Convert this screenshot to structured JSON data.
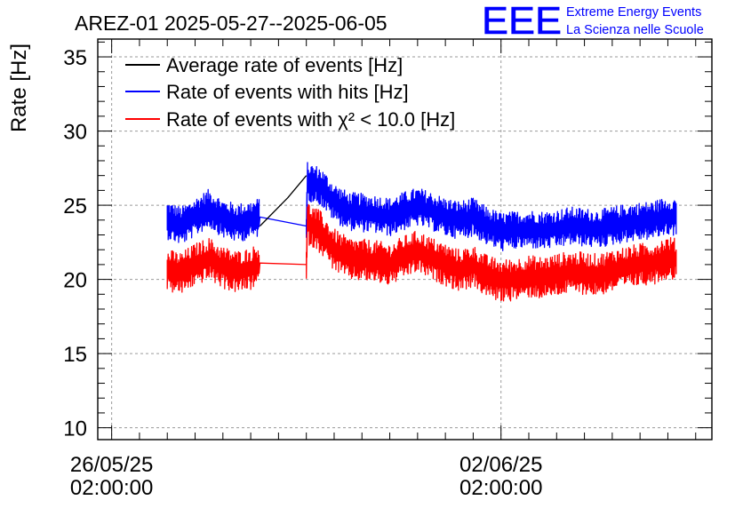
{
  "chart_data": {
    "type": "line",
    "title": "AREZ-01 2025-05-27--2025-06-05",
    "ylabel": "Rate [Hz]",
    "xlabel": "",
    "ylim": [
      9.2,
      36.2
    ],
    "yticks": [
      10,
      15,
      20,
      25,
      30,
      35
    ],
    "xlim": [
      "2025-05-25T20:00:00",
      "2025-06-05T21:00:00"
    ],
    "xticks": [
      {
        "date": "2025-05-26T02:00:00",
        "line1": "26/05/25",
        "line2": "02:00:00"
      },
      {
        "date": "2025-06-02T02:00:00",
        "line1": "02/06/25",
        "line2": "02:00:00"
      }
    ],
    "grid": true,
    "legend_position": "top-left",
    "series": [
      {
        "name": "Average rate of events [Hz]",
        "color": "#000000",
        "points": [
          [
            "2025-05-28T18:00:00",
            23.6
          ],
          [
            "2025-05-29T06:00:00",
            25.5
          ],
          [
            "2025-05-29T14:00:00",
            27.0
          ]
        ]
      },
      {
        "name": "Rate of events with hits [Hz]",
        "color": "#0000ff",
        "noise": 1.0,
        "points": [
          [
            "2025-05-27T02:00:00",
            24.0
          ],
          [
            "2025-05-27T08:00:00",
            23.6
          ],
          [
            "2025-05-27T14:00:00",
            24.2
          ],
          [
            "2025-05-27T20:00:00",
            24.8
          ],
          [
            "2025-05-28T02:00:00",
            24.1
          ],
          [
            "2025-05-28T08:00:00",
            23.8
          ],
          [
            "2025-05-28T14:00:00",
            24.0
          ],
          [
            "2025-05-28T18:00:00",
            24.2
          ],
          [
            "2025-05-29T14:00:00",
            23.6
          ],
          [
            "2025-05-29T14:30:00",
            26.6
          ],
          [
            "2025-05-29T20:00:00",
            26.3
          ],
          [
            "2025-05-30T02:00:00",
            25.2
          ],
          [
            "2025-05-30T08:00:00",
            24.6
          ],
          [
            "2025-05-30T14:00:00",
            24.5
          ],
          [
            "2025-05-30T20:00:00",
            24.4
          ],
          [
            "2025-05-31T02:00:00",
            24.2
          ],
          [
            "2025-05-31T08:00:00",
            24.6
          ],
          [
            "2025-05-31T14:00:00",
            24.9
          ],
          [
            "2025-05-31T20:00:00",
            24.6
          ],
          [
            "2025-06-01T02:00:00",
            24.2
          ],
          [
            "2025-06-01T08:00:00",
            24.0
          ],
          [
            "2025-06-01T14:00:00",
            24.2
          ],
          [
            "2025-06-01T20:00:00",
            23.6
          ],
          [
            "2025-06-02T02:00:00",
            23.2
          ],
          [
            "2025-06-02T08:00:00",
            23.3
          ],
          [
            "2025-06-02T14:00:00",
            23.4
          ],
          [
            "2025-06-02T20:00:00",
            23.3
          ],
          [
            "2025-06-03T02:00:00",
            23.4
          ],
          [
            "2025-06-03T08:00:00",
            23.6
          ],
          [
            "2025-06-03T14:00:00",
            23.5
          ],
          [
            "2025-06-03T20:00:00",
            23.4
          ],
          [
            "2025-06-04T02:00:00",
            23.6
          ],
          [
            "2025-06-04T08:00:00",
            23.8
          ],
          [
            "2025-06-04T14:00:00",
            23.9
          ],
          [
            "2025-06-04T20:00:00",
            24.0
          ],
          [
            "2025-06-05T02:00:00",
            24.3
          ],
          [
            "2025-06-05T06:00:00",
            24.2
          ]
        ]
      },
      {
        "name": "Rate of events with χ² < 10.0 [Hz]",
        "color": "#ff0000",
        "noise": 1.1,
        "points": [
          [
            "2025-05-27T02:00:00",
            20.6
          ],
          [
            "2025-05-27T08:00:00",
            20.4
          ],
          [
            "2025-05-27T14:00:00",
            21.0
          ],
          [
            "2025-05-27T20:00:00",
            21.4
          ],
          [
            "2025-05-28T02:00:00",
            20.8
          ],
          [
            "2025-05-28T08:00:00",
            20.5
          ],
          [
            "2025-05-28T14:00:00",
            20.7
          ],
          [
            "2025-05-28T18:00:00",
            21.1
          ],
          [
            "2025-05-29T14:00:00",
            21.0
          ],
          [
            "2025-05-29T14:30:00",
            23.8
          ],
          [
            "2025-05-29T20:00:00",
            23.2
          ],
          [
            "2025-05-30T02:00:00",
            22.0
          ],
          [
            "2025-05-30T08:00:00",
            21.4
          ],
          [
            "2025-05-30T14:00:00",
            21.3
          ],
          [
            "2025-05-30T20:00:00",
            21.2
          ],
          [
            "2025-05-31T02:00:00",
            21.0
          ],
          [
            "2025-05-31T08:00:00",
            21.5
          ],
          [
            "2025-05-31T14:00:00",
            21.9
          ],
          [
            "2025-05-31T20:00:00",
            21.4
          ],
          [
            "2025-06-01T02:00:00",
            21.0
          ],
          [
            "2025-06-01T08:00:00",
            20.6
          ],
          [
            "2025-06-01T14:00:00",
            20.9
          ],
          [
            "2025-06-01T20:00:00",
            20.2
          ],
          [
            "2025-06-02T02:00:00",
            19.9
          ],
          [
            "2025-06-02T08:00:00",
            20.0
          ],
          [
            "2025-06-02T14:00:00",
            20.2
          ],
          [
            "2025-06-02T20:00:00",
            20.1
          ],
          [
            "2025-06-03T02:00:00",
            20.3
          ],
          [
            "2025-06-03T08:00:00",
            20.5
          ],
          [
            "2025-06-03T14:00:00",
            20.4
          ],
          [
            "2025-06-03T20:00:00",
            20.3
          ],
          [
            "2025-06-04T02:00:00",
            20.6
          ],
          [
            "2025-06-04T08:00:00",
            20.8
          ],
          [
            "2025-06-04T14:00:00",
            21.0
          ],
          [
            "2025-06-04T20:00:00",
            21.1
          ],
          [
            "2025-06-05T02:00:00",
            21.5
          ],
          [
            "2025-06-05T06:00:00",
            21.3
          ]
        ]
      }
    ]
  },
  "logo": {
    "text": "EEE",
    "line1": "Extreme Energy Events",
    "line2": "La Scienza nelle Scuole",
    "color": "#0000ff"
  }
}
